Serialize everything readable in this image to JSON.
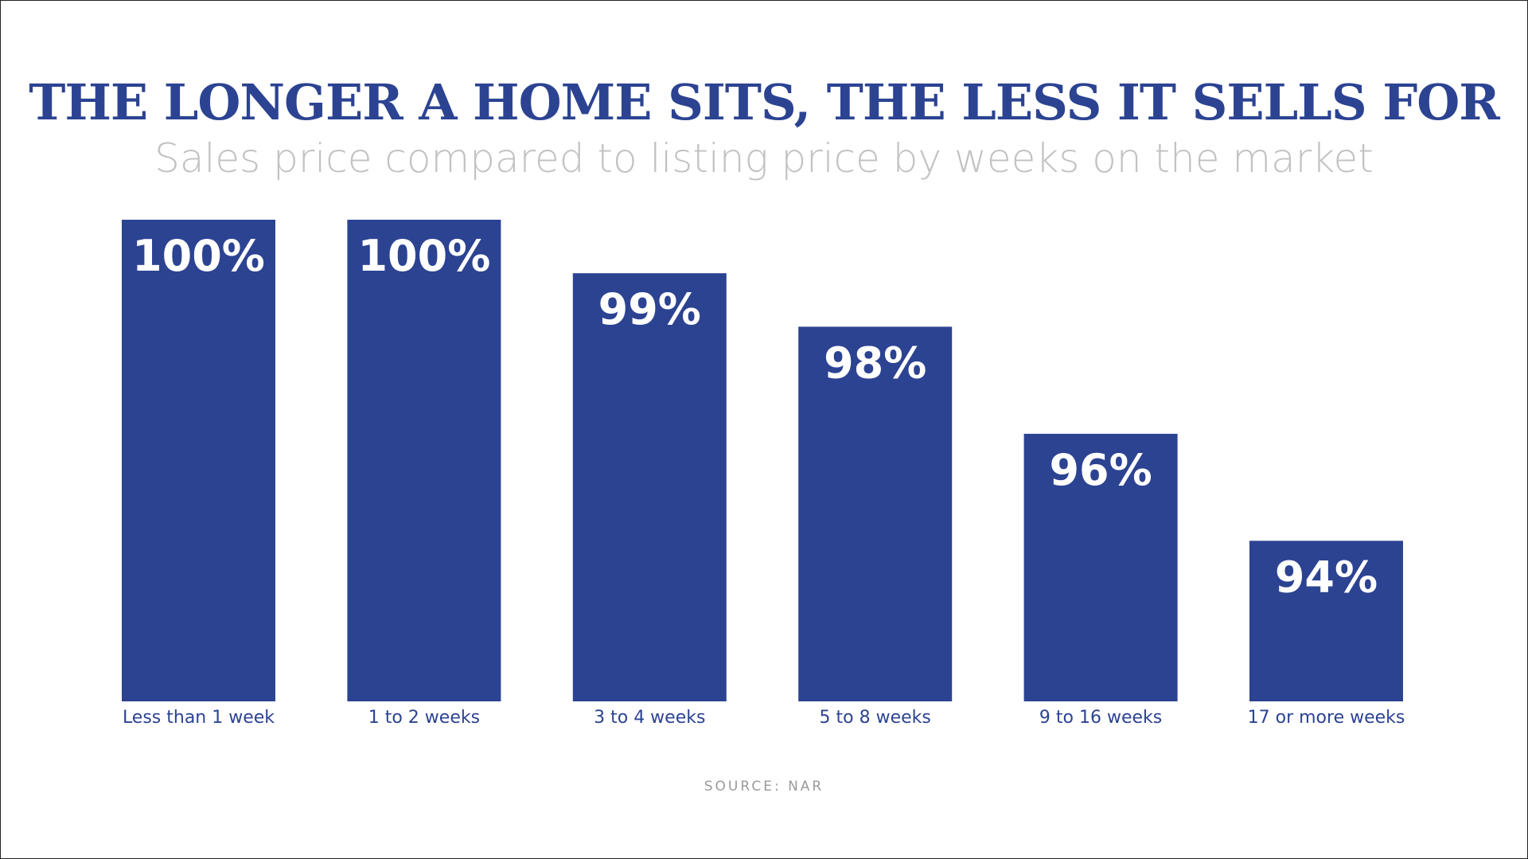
{
  "chart_data": {
    "type": "bar",
    "title": "THE LONGER A HOME SITS, THE LESS IT SELLS FOR",
    "subtitle": "Sales price compared to listing price by weeks on the market",
    "categories": [
      "Less than 1 week",
      "1 to 2 weeks",
      "3 to 4 weeks",
      "5 to 8 weeks",
      "9 to 16 weeks",
      "17 or more weeks"
    ],
    "values": [
      100,
      100,
      99,
      98,
      96,
      94
    ],
    "data_labels": [
      "100%",
      "100%",
      "99%",
      "98%",
      "96%",
      "94%"
    ],
    "xlabel": "",
    "ylabel": "",
    "ylim": [
      91,
      100
    ],
    "grid": false,
    "legend": "none",
    "source": "SOURCE: NAR"
  },
  "colors": {
    "bar": "#2c4392",
    "bar_label": "#ffffff",
    "category_label": "#2c4392",
    "title": "#2c4392",
    "subtitle": "#c2c2c2",
    "source": "#9a9a9a"
  }
}
